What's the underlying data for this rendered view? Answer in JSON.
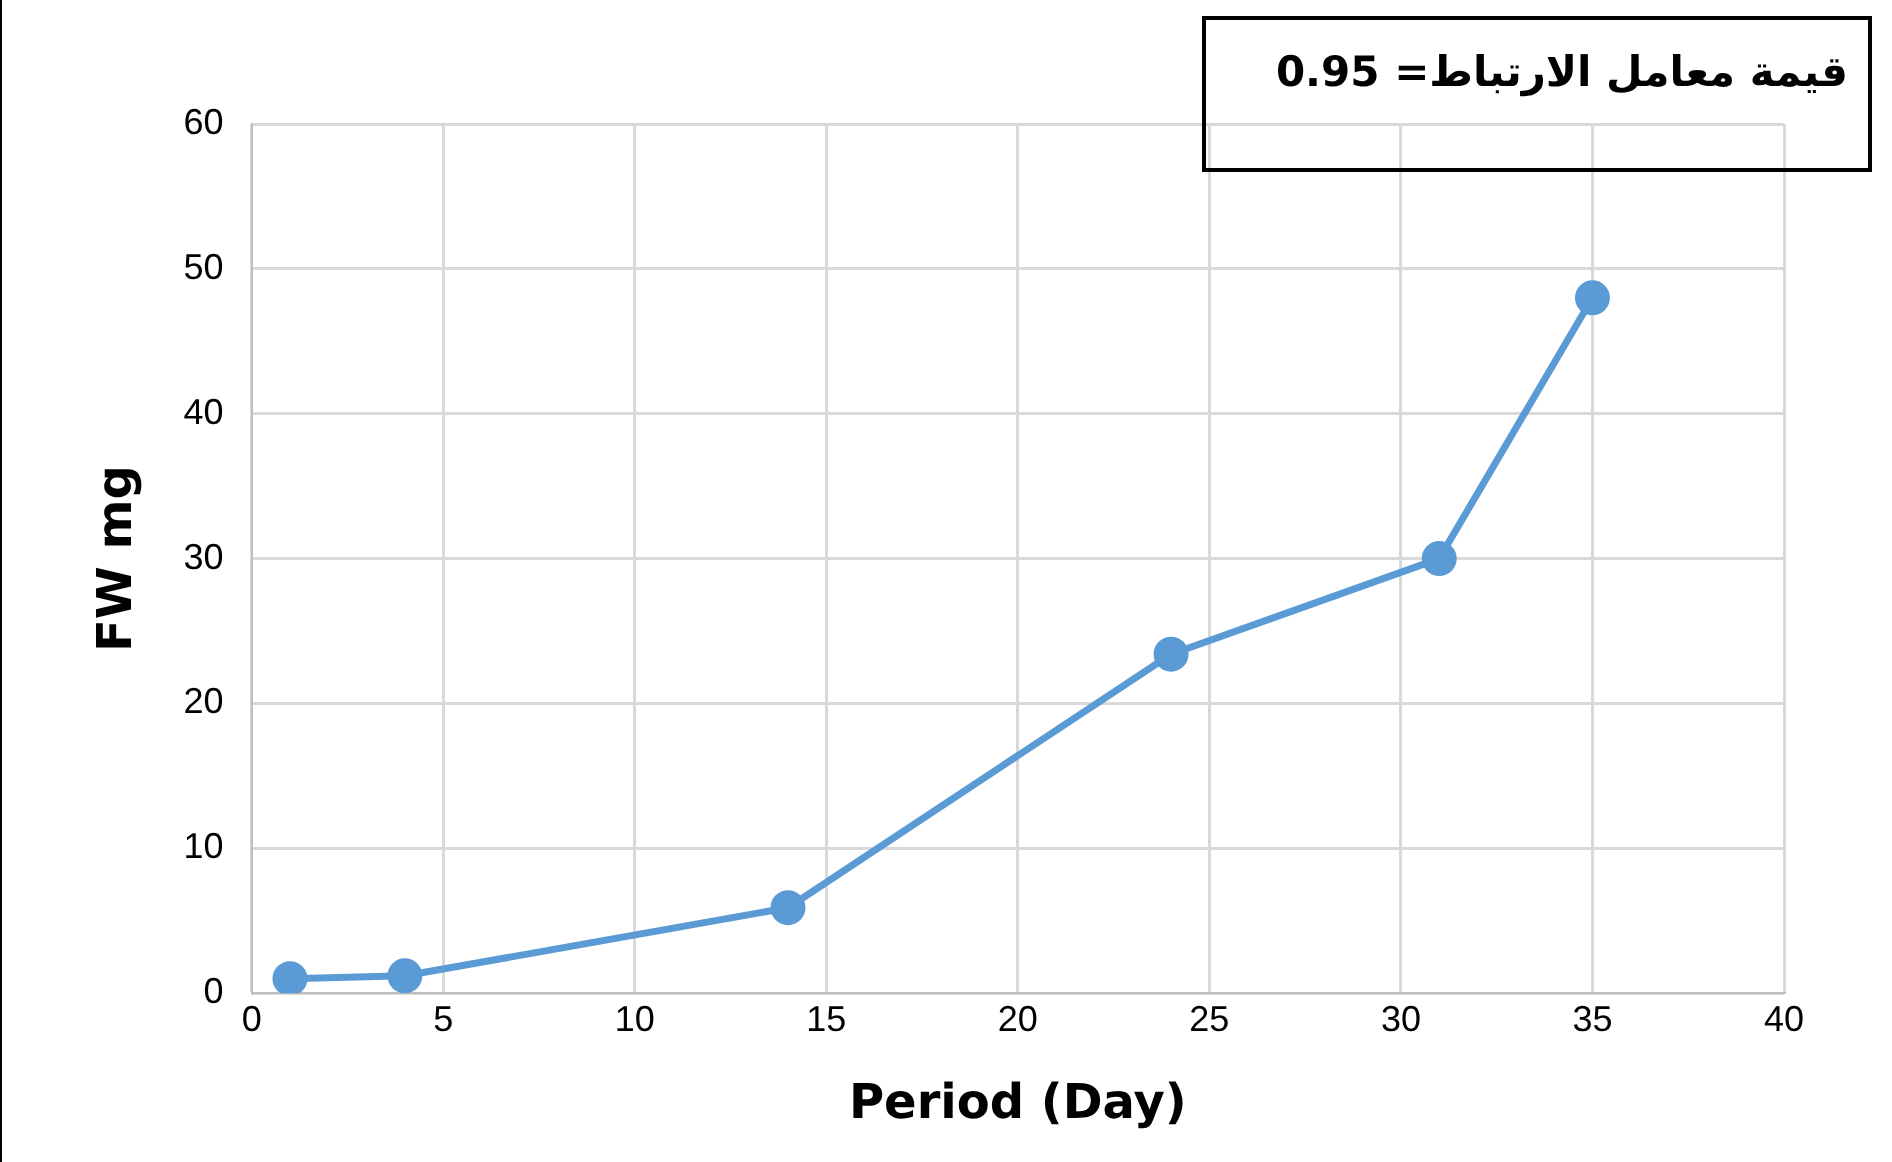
{
  "chart_data": {
    "type": "line",
    "xlabel": "Period (Day)",
    "ylabel": "FW mg",
    "x": [
      1,
      4,
      14,
      24,
      31,
      35
    ],
    "series": [
      {
        "color": "#5b9bd5",
        "values": [
          1,
          1.2,
          5.9,
          23.4,
          30,
          48
        ]
      }
    ],
    "xlim": [
      0,
      40
    ],
    "xticks": [
      0,
      5,
      10,
      15,
      20,
      25,
      30,
      35,
      40
    ],
    "ylim": [
      0,
      60
    ],
    "yticks": [
      0,
      10,
      20,
      30,
      40,
      50,
      60
    ],
    "grid": true,
    "legend": false,
    "marker": "circle",
    "line_style": "solid",
    "annotations": [
      "قيمة معامل  الارتباط= 0.95"
    ]
  }
}
